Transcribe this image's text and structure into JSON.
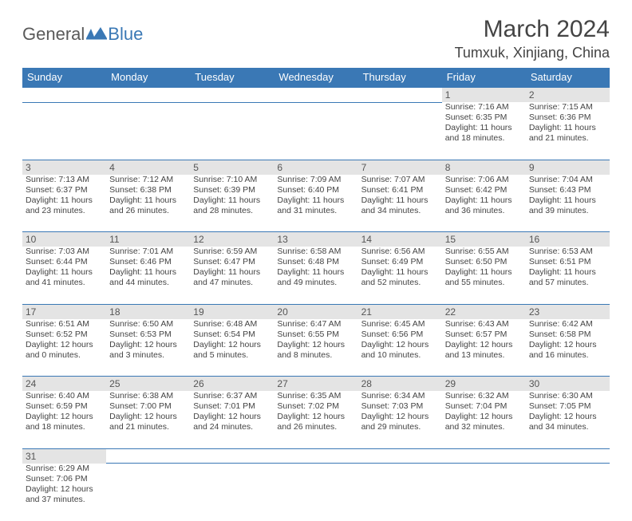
{
  "logo": {
    "text1": "General",
    "text2": "Blue"
  },
  "title": "March 2024",
  "location": "Tumxuk, Xinjiang, China",
  "colors": {
    "header_bg": "#3a78b5",
    "header_text": "#ffffff",
    "daynum_bg": "#e4e4e4",
    "border": "#3a78b5",
    "text": "#444444",
    "page_bg": "#ffffff"
  },
  "day_headers": [
    "Sunday",
    "Monday",
    "Tuesday",
    "Wednesday",
    "Thursday",
    "Friday",
    "Saturday"
  ],
  "weeks": [
    [
      null,
      null,
      null,
      null,
      null,
      {
        "n": "1",
        "sr": "7:16 AM",
        "ss": "6:35 PM",
        "dl": "11 hours and 18 minutes."
      },
      {
        "n": "2",
        "sr": "7:15 AM",
        "ss": "6:36 PM",
        "dl": "11 hours and 21 minutes."
      }
    ],
    [
      {
        "n": "3",
        "sr": "7:13 AM",
        "ss": "6:37 PM",
        "dl": "11 hours and 23 minutes."
      },
      {
        "n": "4",
        "sr": "7:12 AM",
        "ss": "6:38 PM",
        "dl": "11 hours and 26 minutes."
      },
      {
        "n": "5",
        "sr": "7:10 AM",
        "ss": "6:39 PM",
        "dl": "11 hours and 28 minutes."
      },
      {
        "n": "6",
        "sr": "7:09 AM",
        "ss": "6:40 PM",
        "dl": "11 hours and 31 minutes."
      },
      {
        "n": "7",
        "sr": "7:07 AM",
        "ss": "6:41 PM",
        "dl": "11 hours and 34 minutes."
      },
      {
        "n": "8",
        "sr": "7:06 AM",
        "ss": "6:42 PM",
        "dl": "11 hours and 36 minutes."
      },
      {
        "n": "9",
        "sr": "7:04 AM",
        "ss": "6:43 PM",
        "dl": "11 hours and 39 minutes."
      }
    ],
    [
      {
        "n": "10",
        "sr": "7:03 AM",
        "ss": "6:44 PM",
        "dl": "11 hours and 41 minutes."
      },
      {
        "n": "11",
        "sr": "7:01 AM",
        "ss": "6:46 PM",
        "dl": "11 hours and 44 minutes."
      },
      {
        "n": "12",
        "sr": "6:59 AM",
        "ss": "6:47 PM",
        "dl": "11 hours and 47 minutes."
      },
      {
        "n": "13",
        "sr": "6:58 AM",
        "ss": "6:48 PM",
        "dl": "11 hours and 49 minutes."
      },
      {
        "n": "14",
        "sr": "6:56 AM",
        "ss": "6:49 PM",
        "dl": "11 hours and 52 minutes."
      },
      {
        "n": "15",
        "sr": "6:55 AM",
        "ss": "6:50 PM",
        "dl": "11 hours and 55 minutes."
      },
      {
        "n": "16",
        "sr": "6:53 AM",
        "ss": "6:51 PM",
        "dl": "11 hours and 57 minutes."
      }
    ],
    [
      {
        "n": "17",
        "sr": "6:51 AM",
        "ss": "6:52 PM",
        "dl": "12 hours and 0 minutes."
      },
      {
        "n": "18",
        "sr": "6:50 AM",
        "ss": "6:53 PM",
        "dl": "12 hours and 3 minutes."
      },
      {
        "n": "19",
        "sr": "6:48 AM",
        "ss": "6:54 PM",
        "dl": "12 hours and 5 minutes."
      },
      {
        "n": "20",
        "sr": "6:47 AM",
        "ss": "6:55 PM",
        "dl": "12 hours and 8 minutes."
      },
      {
        "n": "21",
        "sr": "6:45 AM",
        "ss": "6:56 PM",
        "dl": "12 hours and 10 minutes."
      },
      {
        "n": "22",
        "sr": "6:43 AM",
        "ss": "6:57 PM",
        "dl": "12 hours and 13 minutes."
      },
      {
        "n": "23",
        "sr": "6:42 AM",
        "ss": "6:58 PM",
        "dl": "12 hours and 16 minutes."
      }
    ],
    [
      {
        "n": "24",
        "sr": "6:40 AM",
        "ss": "6:59 PM",
        "dl": "12 hours and 18 minutes."
      },
      {
        "n": "25",
        "sr": "6:38 AM",
        "ss": "7:00 PM",
        "dl": "12 hours and 21 minutes."
      },
      {
        "n": "26",
        "sr": "6:37 AM",
        "ss": "7:01 PM",
        "dl": "12 hours and 24 minutes."
      },
      {
        "n": "27",
        "sr": "6:35 AM",
        "ss": "7:02 PM",
        "dl": "12 hours and 26 minutes."
      },
      {
        "n": "28",
        "sr": "6:34 AM",
        "ss": "7:03 PM",
        "dl": "12 hours and 29 minutes."
      },
      {
        "n": "29",
        "sr": "6:32 AM",
        "ss": "7:04 PM",
        "dl": "12 hours and 32 minutes."
      },
      {
        "n": "30",
        "sr": "6:30 AM",
        "ss": "7:05 PM",
        "dl": "12 hours and 34 minutes."
      }
    ],
    [
      {
        "n": "31",
        "sr": "6:29 AM",
        "ss": "7:06 PM",
        "dl": "12 hours and 37 minutes."
      },
      null,
      null,
      null,
      null,
      null,
      null
    ]
  ],
  "labels": {
    "sunrise": "Sunrise: ",
    "sunset": "Sunset: ",
    "daylight": "Daylight: "
  }
}
